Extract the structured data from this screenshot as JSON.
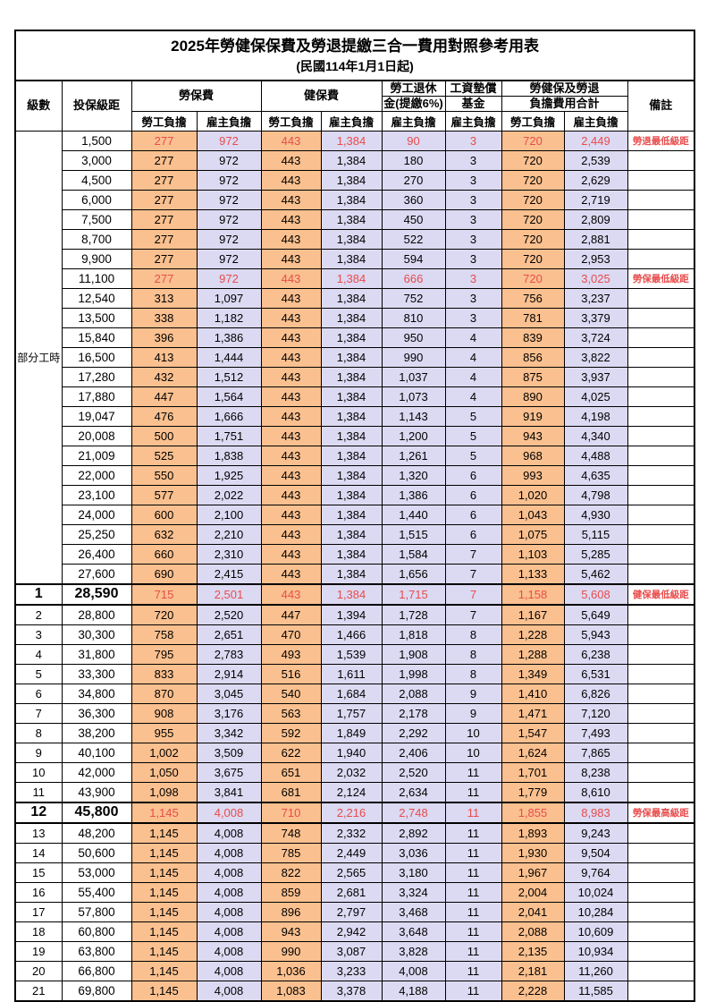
{
  "title": "2025年勞健保保費及勞退提繳三合一費用對照參考用表",
  "subtitle": "(民國114年1月1日起)",
  "colors": {
    "employee_cell": "#FAC08F",
    "employer_cell": "#DCD9F2",
    "highlight_text": "#E84C4C",
    "border": "#000000"
  },
  "header": {
    "level": "級數",
    "bracket": "投保級距",
    "labor_insurance": "勞保費",
    "health_insurance": "健保費",
    "pension_line1": "勞工退休",
    "pension_line2": "金(提繳6%)",
    "wage_fund_line1": "工資墊償",
    "wage_fund_line2": "基金",
    "total_line1": "勞健保及勞退",
    "total_line2": "負擔費用合計",
    "remark": "備註",
    "employee": "勞工負擔",
    "employer": "雇主負擔"
  },
  "table": {
    "part_time_label": "部分工時",
    "part_time_rowspan": 23,
    "value_columns": [
      "labor_emp",
      "labor_er",
      "health_emp",
      "health_er",
      "pension_er",
      "fund_er",
      "total_emp",
      "total_er"
    ],
    "rows": [
      {
        "level": "",
        "bracket": "1,500",
        "values": [
          "277",
          "972",
          "443",
          "1,384",
          "90",
          "3",
          "720",
          "2,449"
        ],
        "remark": "勞退最低級距",
        "red": true,
        "thick": false,
        "big": false
      },
      {
        "level": "",
        "bracket": "3,000",
        "values": [
          "277",
          "972",
          "443",
          "1,384",
          "180",
          "3",
          "720",
          "2,539"
        ],
        "remark": "",
        "red": false,
        "thick": false,
        "big": false
      },
      {
        "level": "",
        "bracket": "4,500",
        "values": [
          "277",
          "972",
          "443",
          "1,384",
          "270",
          "3",
          "720",
          "2,629"
        ],
        "remark": "",
        "red": false,
        "thick": false,
        "big": false
      },
      {
        "level": "",
        "bracket": "6,000",
        "values": [
          "277",
          "972",
          "443",
          "1,384",
          "360",
          "3",
          "720",
          "2,719"
        ],
        "remark": "",
        "red": false,
        "thick": false,
        "big": false
      },
      {
        "level": "",
        "bracket": "7,500",
        "values": [
          "277",
          "972",
          "443",
          "1,384",
          "450",
          "3",
          "720",
          "2,809"
        ],
        "remark": "",
        "red": false,
        "thick": false,
        "big": false
      },
      {
        "level": "",
        "bracket": "8,700",
        "values": [
          "277",
          "972",
          "443",
          "1,384",
          "522",
          "3",
          "720",
          "2,881"
        ],
        "remark": "",
        "red": false,
        "thick": false,
        "big": false
      },
      {
        "level": "",
        "bracket": "9,900",
        "values": [
          "277",
          "972",
          "443",
          "1,384",
          "594",
          "3",
          "720",
          "2,953"
        ],
        "remark": "",
        "red": false,
        "thick": false,
        "big": false
      },
      {
        "level": "",
        "bracket": "11,100",
        "values": [
          "277",
          "972",
          "443",
          "1,384",
          "666",
          "3",
          "720",
          "3,025"
        ],
        "remark": "勞保最低級距",
        "red": true,
        "thick": false,
        "big": false
      },
      {
        "level": "",
        "bracket": "12,540",
        "values": [
          "313",
          "1,097",
          "443",
          "1,384",
          "752",
          "3",
          "756",
          "3,237"
        ],
        "remark": "",
        "red": false,
        "thick": false,
        "big": false
      },
      {
        "level": "",
        "bracket": "13,500",
        "values": [
          "338",
          "1,182",
          "443",
          "1,384",
          "810",
          "3",
          "781",
          "3,379"
        ],
        "remark": "",
        "red": false,
        "thick": false,
        "big": false
      },
      {
        "level": "",
        "bracket": "15,840",
        "values": [
          "396",
          "1,386",
          "443",
          "1,384",
          "950",
          "4",
          "839",
          "3,724"
        ],
        "remark": "",
        "red": false,
        "thick": false,
        "big": false
      },
      {
        "level": "",
        "bracket": "16,500",
        "values": [
          "413",
          "1,444",
          "443",
          "1,384",
          "990",
          "4",
          "856",
          "3,822"
        ],
        "remark": "",
        "red": false,
        "thick": false,
        "big": false
      },
      {
        "level": "",
        "bracket": "17,280",
        "values": [
          "432",
          "1,512",
          "443",
          "1,384",
          "1,037",
          "4",
          "875",
          "3,937"
        ],
        "remark": "",
        "red": false,
        "thick": false,
        "big": false
      },
      {
        "level": "",
        "bracket": "17,880",
        "values": [
          "447",
          "1,564",
          "443",
          "1,384",
          "1,073",
          "4",
          "890",
          "4,025"
        ],
        "remark": "",
        "red": false,
        "thick": false,
        "big": false
      },
      {
        "level": "",
        "bracket": "19,047",
        "values": [
          "476",
          "1,666",
          "443",
          "1,384",
          "1,143",
          "5",
          "919",
          "4,198"
        ],
        "remark": "",
        "red": false,
        "thick": false,
        "big": false
      },
      {
        "level": "",
        "bracket": "20,008",
        "values": [
          "500",
          "1,751",
          "443",
          "1,384",
          "1,200",
          "5",
          "943",
          "4,340"
        ],
        "remark": "",
        "red": false,
        "thick": false,
        "big": false
      },
      {
        "level": "",
        "bracket": "21,009",
        "values": [
          "525",
          "1,838",
          "443",
          "1,384",
          "1,261",
          "5",
          "968",
          "4,488"
        ],
        "remark": "",
        "red": false,
        "thick": false,
        "big": false
      },
      {
        "level": "",
        "bracket": "22,000",
        "values": [
          "550",
          "1,925",
          "443",
          "1,384",
          "1,320",
          "6",
          "993",
          "4,635"
        ],
        "remark": "",
        "red": false,
        "thick": false,
        "big": false
      },
      {
        "level": "",
        "bracket": "23,100",
        "values": [
          "577",
          "2,022",
          "443",
          "1,384",
          "1,386",
          "6",
          "1,020",
          "4,798"
        ],
        "remark": "",
        "red": false,
        "thick": false,
        "big": false
      },
      {
        "level": "",
        "bracket": "24,000",
        "values": [
          "600",
          "2,100",
          "443",
          "1,384",
          "1,440",
          "6",
          "1,043",
          "4,930"
        ],
        "remark": "",
        "red": false,
        "thick": false,
        "big": false
      },
      {
        "level": "",
        "bracket": "25,250",
        "values": [
          "632",
          "2,210",
          "443",
          "1,384",
          "1,515",
          "6",
          "1,075",
          "5,115"
        ],
        "remark": "",
        "red": false,
        "thick": false,
        "big": false
      },
      {
        "level": "",
        "bracket": "26,400",
        "values": [
          "660",
          "2,310",
          "443",
          "1,384",
          "1,584",
          "7",
          "1,103",
          "5,285"
        ],
        "remark": "",
        "red": false,
        "thick": false,
        "big": false
      },
      {
        "level": "",
        "bracket": "27,600",
        "values": [
          "690",
          "2,415",
          "443",
          "1,384",
          "1,656",
          "7",
          "1,133",
          "5,462"
        ],
        "remark": "",
        "red": false,
        "thick": false,
        "big": false
      },
      {
        "level": "1",
        "bracket": "28,590",
        "values": [
          "715",
          "2,501",
          "443",
          "1,384",
          "1,715",
          "7",
          "1,158",
          "5,608"
        ],
        "remark": "健保最低級距",
        "red": true,
        "thick": true,
        "big": true
      },
      {
        "level": "2",
        "bracket": "28,800",
        "values": [
          "720",
          "2,520",
          "447",
          "1,394",
          "1,728",
          "7",
          "1,167",
          "5,649"
        ],
        "remark": "",
        "red": false,
        "thick": false,
        "big": false
      },
      {
        "level": "3",
        "bracket": "30,300",
        "values": [
          "758",
          "2,651",
          "470",
          "1,466",
          "1,818",
          "8",
          "1,228",
          "5,943"
        ],
        "remark": "",
        "red": false,
        "thick": false,
        "big": false
      },
      {
        "level": "4",
        "bracket": "31,800",
        "values": [
          "795",
          "2,783",
          "493",
          "1,539",
          "1,908",
          "8",
          "1,288",
          "6,238"
        ],
        "remark": "",
        "red": false,
        "thick": false,
        "big": false
      },
      {
        "level": "5",
        "bracket": "33,300",
        "values": [
          "833",
          "2,914",
          "516",
          "1,611",
          "1,998",
          "8",
          "1,349",
          "6,531"
        ],
        "remark": "",
        "red": false,
        "thick": false,
        "big": false
      },
      {
        "level": "6",
        "bracket": "34,800",
        "values": [
          "870",
          "3,045",
          "540",
          "1,684",
          "2,088",
          "9",
          "1,410",
          "6,826"
        ],
        "remark": "",
        "red": false,
        "thick": false,
        "big": false
      },
      {
        "level": "7",
        "bracket": "36,300",
        "values": [
          "908",
          "3,176",
          "563",
          "1,757",
          "2,178",
          "9",
          "1,471",
          "7,120"
        ],
        "remark": "",
        "red": false,
        "thick": false,
        "big": false
      },
      {
        "level": "8",
        "bracket": "38,200",
        "values": [
          "955",
          "3,342",
          "592",
          "1,849",
          "2,292",
          "10",
          "1,547",
          "7,493"
        ],
        "remark": "",
        "red": false,
        "thick": false,
        "big": false
      },
      {
        "level": "9",
        "bracket": "40,100",
        "values": [
          "1,002",
          "3,509",
          "622",
          "1,940",
          "2,406",
          "10",
          "1,624",
          "7,865"
        ],
        "remark": "",
        "red": false,
        "thick": false,
        "big": false
      },
      {
        "level": "10",
        "bracket": "42,000",
        "values": [
          "1,050",
          "3,675",
          "651",
          "2,032",
          "2,520",
          "11",
          "1,701",
          "8,238"
        ],
        "remark": "",
        "red": false,
        "thick": false,
        "big": false
      },
      {
        "level": "11",
        "bracket": "43,900",
        "values": [
          "1,098",
          "3,841",
          "681",
          "2,124",
          "2,634",
          "11",
          "1,779",
          "8,610"
        ],
        "remark": "",
        "red": false,
        "thick": false,
        "big": false
      },
      {
        "level": "12",
        "bracket": "45,800",
        "values": [
          "1,145",
          "4,008",
          "710",
          "2,216",
          "2,748",
          "11",
          "1,855",
          "8,983"
        ],
        "remark": "勞保最高級距",
        "red": true,
        "thick": true,
        "big": true
      },
      {
        "level": "13",
        "bracket": "48,200",
        "values": [
          "1,145",
          "4,008",
          "748",
          "2,332",
          "2,892",
          "11",
          "1,893",
          "9,243"
        ],
        "remark": "",
        "red": false,
        "thick": false,
        "big": false
      },
      {
        "level": "14",
        "bracket": "50,600",
        "values": [
          "1,145",
          "4,008",
          "785",
          "2,449",
          "3,036",
          "11",
          "1,930",
          "9,504"
        ],
        "remark": "",
        "red": false,
        "thick": false,
        "big": false
      },
      {
        "level": "15",
        "bracket": "53,000",
        "values": [
          "1,145",
          "4,008",
          "822",
          "2,565",
          "3,180",
          "11",
          "1,967",
          "9,764"
        ],
        "remark": "",
        "red": false,
        "thick": false,
        "big": false
      },
      {
        "level": "16",
        "bracket": "55,400",
        "values": [
          "1,145",
          "4,008",
          "859",
          "2,681",
          "3,324",
          "11",
          "2,004",
          "10,024"
        ],
        "remark": "",
        "red": false,
        "thick": false,
        "big": false
      },
      {
        "level": "17",
        "bracket": "57,800",
        "values": [
          "1,145",
          "4,008",
          "896",
          "2,797",
          "3,468",
          "11",
          "2,041",
          "10,284"
        ],
        "remark": "",
        "red": false,
        "thick": false,
        "big": false
      },
      {
        "level": "18",
        "bracket": "60,800",
        "values": [
          "1,145",
          "4,008",
          "943",
          "2,942",
          "3,648",
          "11",
          "2,088",
          "10,609"
        ],
        "remark": "",
        "red": false,
        "thick": false,
        "big": false
      },
      {
        "level": "19",
        "bracket": "63,800",
        "values": [
          "1,145",
          "4,008",
          "990",
          "3,087",
          "3,828",
          "11",
          "2,135",
          "10,934"
        ],
        "remark": "",
        "red": false,
        "thick": false,
        "big": false
      },
      {
        "level": "20",
        "bracket": "66,800",
        "values": [
          "1,145",
          "4,008",
          "1,036",
          "3,233",
          "4,008",
          "11",
          "2,181",
          "11,260"
        ],
        "remark": "",
        "red": false,
        "thick": false,
        "big": false
      },
      {
        "level": "21",
        "bracket": "69,800",
        "values": [
          "1,145",
          "4,008",
          "1,083",
          "3,378",
          "4,188",
          "11",
          "2,228",
          "11,585"
        ],
        "remark": "",
        "red": false,
        "thick": false,
        "big": false
      }
    ]
  }
}
